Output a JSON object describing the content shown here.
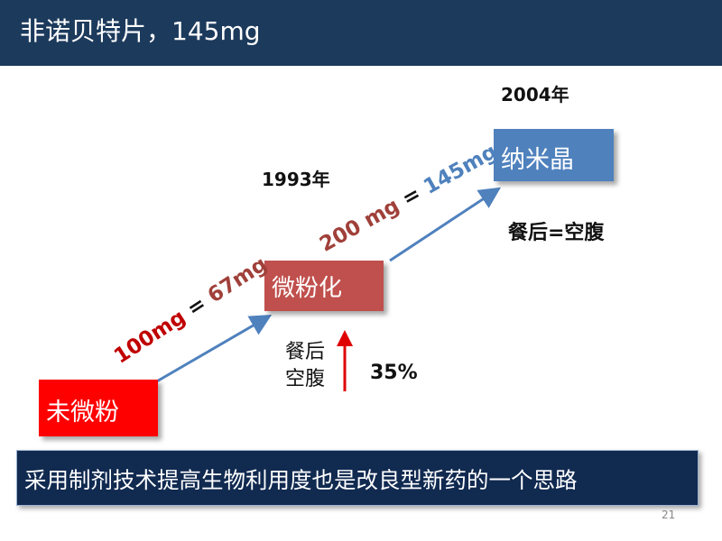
{
  "header": {
    "title": "非诺贝特片，145mg"
  },
  "boxes": {
    "micronized": "微粉化",
    "nanocrystal": "纳米晶",
    "non_micronized": "未微粉"
  },
  "years": {
    "y2004": "2004年",
    "y1993": "1993年"
  },
  "fed_equals_fasted": "餐后=空腹",
  "fed_fasted_label": {
    "fed": "餐后",
    "fasted": "空腹"
  },
  "percent_increase": "35%",
  "dose_equiv_1": {
    "part_a": "100mg",
    "part_b": " = ",
    "part_c": "67mg"
  },
  "dose_equiv_2": {
    "part_a": "200 mg",
    "part_b": " = ",
    "part_c": "145mg"
  },
  "banner": {
    "text": "采用制剂技术提高生物利用度也是改良型新药的一个思路"
  },
  "page_number": "21",
  "colors": {
    "header_bg": "#1c3a5c",
    "red_box": "#ff0000",
    "brown_box": "#c0504d",
    "blue_box": "#4f81bd",
    "arrow": "#4f81bd",
    "up_arrow": "#e00000",
    "banner_bg": "#112a50"
  }
}
